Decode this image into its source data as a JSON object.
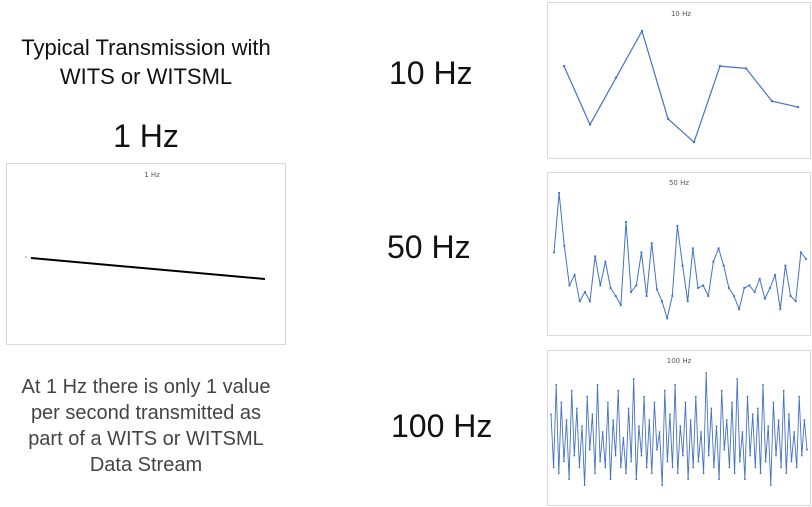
{
  "heading": [
    "Typical Transmission with",
    "WITS or WITSML"
  ],
  "one_hz_label": "1 Hz",
  "description": [
    "At 1 Hz there is only 1 value",
    "per second transmitted as",
    "part of a WITS or WITSML",
    "Data Stream"
  ],
  "rate_labels": {
    "r10": "10 Hz",
    "r50": "50 Hz",
    "r100": "100 Hz"
  },
  "colors": {
    "line_blue": "#4472c4",
    "line_black": "#000000",
    "title_gray": "#595959"
  },
  "chart_data": [
    {
      "id": "c1",
      "type": "line",
      "title": "1   Hz",
      "series": [
        {
          "values": [
            0.65,
            0.5
          ]
        }
      ]
    },
    {
      "id": "c10",
      "type": "line",
      "title": "10 Hz",
      "series": [
        {
          "values": [
            0.7,
            0.2,
            0.6,
            1.0,
            0.25,
            0.05,
            0.7,
            0.68,
            0.4,
            0.35
          ]
        }
      ]
    },
    {
      "id": "c50",
      "type": "line",
      "title": "50 Hz",
      "series": [
        {
          "values": [
            0.55,
            1.0,
            0.6,
            0.3,
            0.38,
            0.18,
            0.25,
            0.18,
            0.52,
            0.3,
            0.48,
            0.28,
            0.22,
            0.15,
            0.78,
            0.25,
            0.3,
            0.55,
            0.22,
            0.62,
            0.27,
            0.18,
            0.05,
            0.22,
            0.75,
            0.45,
            0.18,
            0.58,
            0.28,
            0.3,
            0.22,
            0.48,
            0.58,
            0.45,
            0.28,
            0.22,
            0.12,
            0.28,
            0.3,
            0.25,
            0.35,
            0.2,
            0.28,
            0.38,
            0.12,
            0.45,
            0.22,
            0.18,
            0.55,
            0.5
          ]
        }
      ]
    },
    {
      "id": "c100",
      "type": "line",
      "title": "100 Hz",
      "series": [
        {
          "values": [
            0.65,
            0.2,
            0.9,
            0.15,
            0.75,
            0.25,
            0.6,
            0.1,
            0.85,
            0.3,
            0.7,
            0.2,
            0.55,
            0.05,
            0.8,
            0.35,
            0.65,
            0.15,
            0.9,
            0.25,
            0.5,
            0.2,
            0.75,
            0.1,
            0.6,
            0.3,
            0.85,
            0.2,
            0.45,
            0.15,
            0.7,
            0.25,
            0.95,
            0.1,
            0.55,
            0.3,
            0.8,
            0.2,
            0.6,
            0.15,
            0.75,
            0.35,
            0.5,
            0.05,
            0.85,
            0.25,
            0.65,
            0.2,
            0.9,
            0.15,
            0.55,
            0.3,
            0.75,
            0.1,
            0.6,
            0.2,
            0.8,
            0.25,
            0.5,
            0.15,
            1.0,
            0.3,
            0.7,
            0.2,
            0.55,
            0.1,
            0.85,
            0.35,
            0.6,
            0.2,
            0.75,
            0.15,
            0.95,
            0.25,
            0.5,
            0.1,
            0.8,
            0.3,
            0.65,
            0.2,
            0.7,
            0.15,
            0.9,
            0.25,
            0.55,
            0.05,
            0.75,
            0.3,
            0.6,
            0.2,
            0.85,
            0.15,
            0.65,
            0.25,
            0.5,
            0.2,
            0.8,
            0.3,
            0.6,
            0.35
          ]
        }
      ]
    }
  ]
}
